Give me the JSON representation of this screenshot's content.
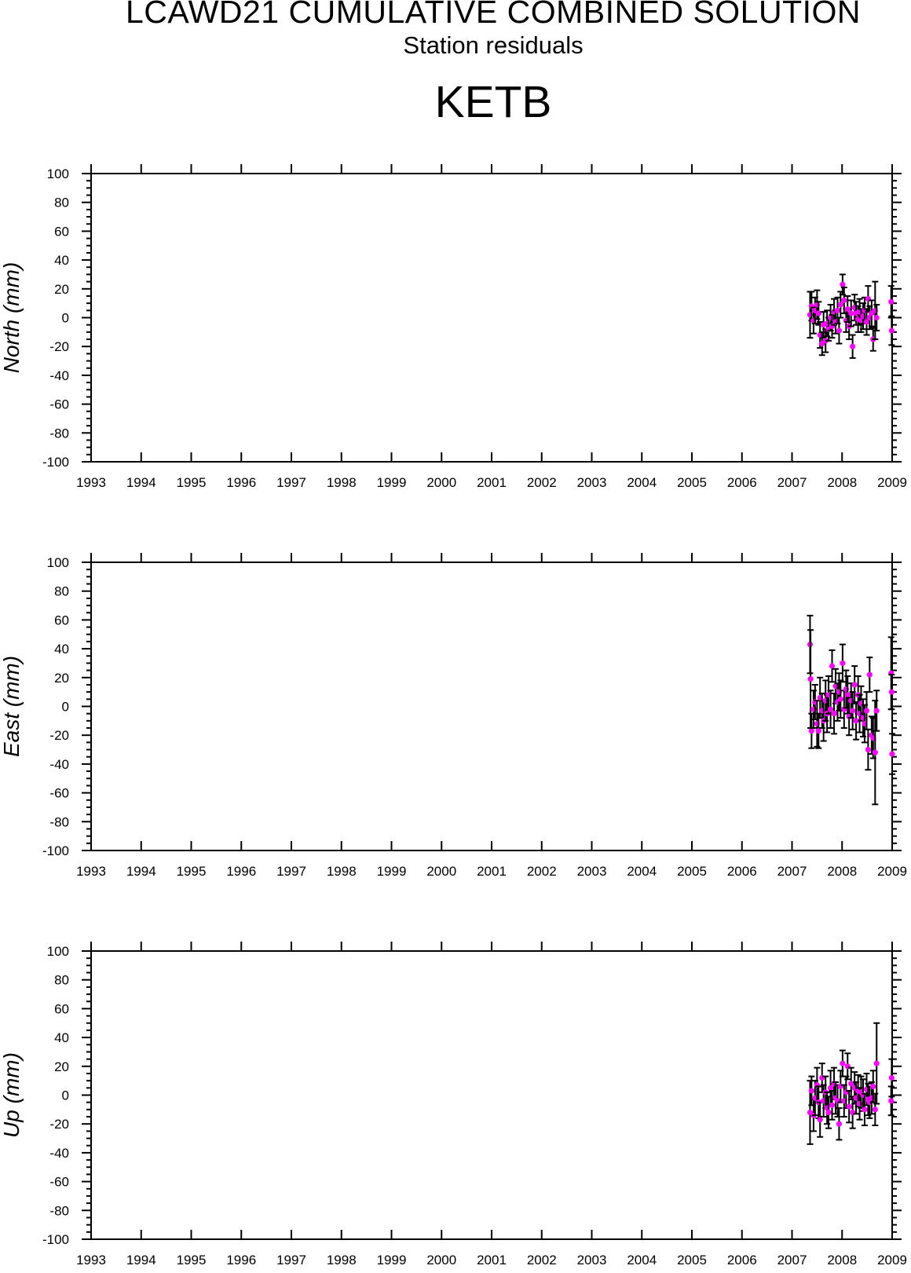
{
  "header": {
    "title": "LCAWD21 CUMULATIVE COMBINED SOLUTION",
    "subtitle": "Station residuals",
    "station": "KETB"
  },
  "colors": {
    "marker": "#ff00ff",
    "errorbar": "#000000",
    "axis": "#000000"
  },
  "chart_data": [
    {
      "type": "scatter",
      "ylabel": "North (mm)",
      "xlim": [
        1993,
        2009
      ],
      "ylim": [
        -100,
        100
      ],
      "xticks": [
        "1993",
        "1994",
        "1995",
        "1996",
        "1997",
        "1998",
        "1999",
        "2000",
        "2001",
        "2002",
        "2003",
        "2004",
        "2005",
        "2006",
        "2007",
        "2008",
        "2009"
      ],
      "yticks": [
        "100",
        "80",
        "60",
        "40",
        "20",
        "0",
        "-20",
        "-40",
        "-60",
        "-80",
        "-100"
      ],
      "grid": false,
      "series": [
        {
          "x": [
            2007.36,
            2007.39,
            2007.43,
            2007.46,
            2007.5,
            2007.53,
            2007.56,
            2007.6,
            2007.63,
            2007.67,
            2007.7,
            2007.73,
            2007.77,
            2007.8,
            2007.84,
            2007.87,
            2007.91,
            2007.94,
            2007.97,
            2008.01,
            2008.04,
            2008.08,
            2008.11,
            2008.14,
            2008.18,
            2008.21,
            2008.25,
            2008.28,
            2008.32,
            2008.35,
            2008.38,
            2008.42,
            2008.45,
            2008.49,
            2008.52,
            2008.55,
            2008.59,
            2008.62,
            2008.66,
            2008.69,
            2008.98,
            2008.99
          ],
          "y": [
            2,
            8,
            -2,
            5,
            9,
            3,
            -12,
            -18,
            -5,
            -16,
            -4,
            -8,
            0,
            -6,
            4,
            -3,
            5,
            -9,
            9,
            23,
            12,
            -2,
            6,
            -6,
            3,
            -20,
            7,
            3,
            -1,
            4,
            -2,
            1,
            5,
            -3,
            13,
            0,
            3,
            -15,
            5,
            0,
            11,
            -9
          ],
          "err": [
            16,
            10,
            9,
            9,
            10,
            8,
            9,
            8,
            9,
            8,
            9,
            8,
            9,
            8,
            9,
            8,
            9,
            9,
            9,
            7,
            9,
            8,
            9,
            9,
            9,
            8,
            9,
            8,
            9,
            9,
            8,
            9,
            9,
            9,
            9,
            8,
            9,
            8,
            20,
            9,
            11,
            10
          ]
        }
      ]
    },
    {
      "type": "scatter",
      "ylabel": "East (mm)",
      "xlim": [
        1993,
        2009
      ],
      "ylim": [
        -100,
        100
      ],
      "xticks": [
        "1993",
        "1994",
        "1995",
        "1996",
        "1997",
        "1998",
        "1999",
        "2000",
        "2001",
        "2002",
        "2003",
        "2004",
        "2005",
        "2006",
        "2007",
        "2008",
        "2009"
      ],
      "yticks": [
        "100",
        "80",
        "60",
        "40",
        "20",
        "0",
        "-20",
        "-40",
        "-60",
        "-80",
        "-100"
      ],
      "grid": false,
      "series": [
        {
          "x": [
            2007.36,
            2007.37,
            2007.39,
            2007.43,
            2007.46,
            2007.5,
            2007.53,
            2007.56,
            2007.6,
            2007.63,
            2007.67,
            2007.7,
            2007.73,
            2007.77,
            2007.8,
            2007.84,
            2007.87,
            2007.91,
            2007.94,
            2007.97,
            2008.01,
            2008.04,
            2008.08,
            2008.11,
            2008.14,
            2008.18,
            2008.21,
            2008.25,
            2008.28,
            2008.32,
            2008.35,
            2008.38,
            2008.42,
            2008.45,
            2008.49,
            2008.52,
            2008.55,
            2008.59,
            2008.62,
            2008.66,
            2008.69,
            2008.98,
            2008.99,
            2009.0
          ],
          "y": [
            43,
            19,
            -17,
            -2,
            3,
            -12,
            -17,
            6,
            -3,
            -10,
            4,
            -5,
            8,
            -2,
            28,
            -5,
            14,
            3,
            10,
            5,
            30,
            -2,
            12,
            8,
            -7,
            4,
            -3,
            15,
            -10,
            8,
            -5,
            2,
            -8,
            -12,
            -3,
            -30,
            22,
            -20,
            -22,
            -32,
            -3,
            23,
            10,
            -33
          ],
          "err": [
            20,
            34,
            12,
            13,
            12,
            16,
            12,
            14,
            12,
            14,
            14,
            13,
            13,
            13,
            11,
            14,
            12,
            13,
            13,
            13,
            13,
            13,
            13,
            13,
            13,
            12,
            13,
            13,
            13,
            13,
            13,
            12,
            13,
            13,
            13,
            14,
            12,
            13,
            14,
            36,
            14,
            25,
            12,
            14
          ]
        }
      ]
    },
    {
      "type": "scatter",
      "ylabel": "Up (mm)",
      "xlim": [
        1993,
        2009
      ],
      "ylim": [
        -100,
        100
      ],
      "xticks": [
        "1993",
        "1994",
        "1995",
        "1996",
        "1997",
        "1998",
        "1999",
        "2000",
        "2001",
        "2002",
        "2003",
        "2004",
        "2005",
        "2006",
        "2007",
        "2008",
        "2009"
      ],
      "yticks": [
        "100",
        "80",
        "60",
        "40",
        "20",
        "0",
        "-20",
        "-40",
        "-60",
        "-80",
        "-100"
      ],
      "grid": false,
      "series": [
        {
          "x": [
            2007.36,
            2007.39,
            2007.43,
            2007.46,
            2007.5,
            2007.53,
            2007.56,
            2007.6,
            2007.63,
            2007.67,
            2007.7,
            2007.73,
            2007.77,
            2007.8,
            2007.84,
            2007.87,
            2007.91,
            2007.94,
            2007.97,
            2008.01,
            2008.04,
            2008.08,
            2008.11,
            2008.14,
            2008.18,
            2008.21,
            2008.25,
            2008.28,
            2008.32,
            2008.35,
            2008.38,
            2008.42,
            2008.45,
            2008.49,
            2008.52,
            2008.55,
            2008.59,
            2008.62,
            2008.66,
            2008.69,
            2008.98,
            2008.99
          ],
          "y": [
            -12,
            3,
            -14,
            -2,
            7,
            -5,
            -17,
            12,
            -4,
            2,
            -9,
            -12,
            5,
            -7,
            8,
            -2,
            -4,
            -20,
            6,
            22,
            -4,
            2,
            20,
            -8,
            8,
            -12,
            5,
            -2,
            3,
            -6,
            2,
            0,
            -10,
            4,
            -3,
            -5,
            -2,
            6,
            -10,
            22,
            -4,
            12
          ],
          "err": [
            22,
            10,
            11,
            12,
            12,
            11,
            12,
            10,
            11,
            11,
            11,
            11,
            12,
            10,
            11,
            11,
            11,
            11,
            11,
            9,
            11,
            11,
            9,
            11,
            11,
            11,
            11,
            11,
            11,
            11,
            11,
            11,
            11,
            11,
            11,
            11,
            11,
            11,
            11,
            28,
            10,
            13
          ]
        }
      ]
    }
  ]
}
